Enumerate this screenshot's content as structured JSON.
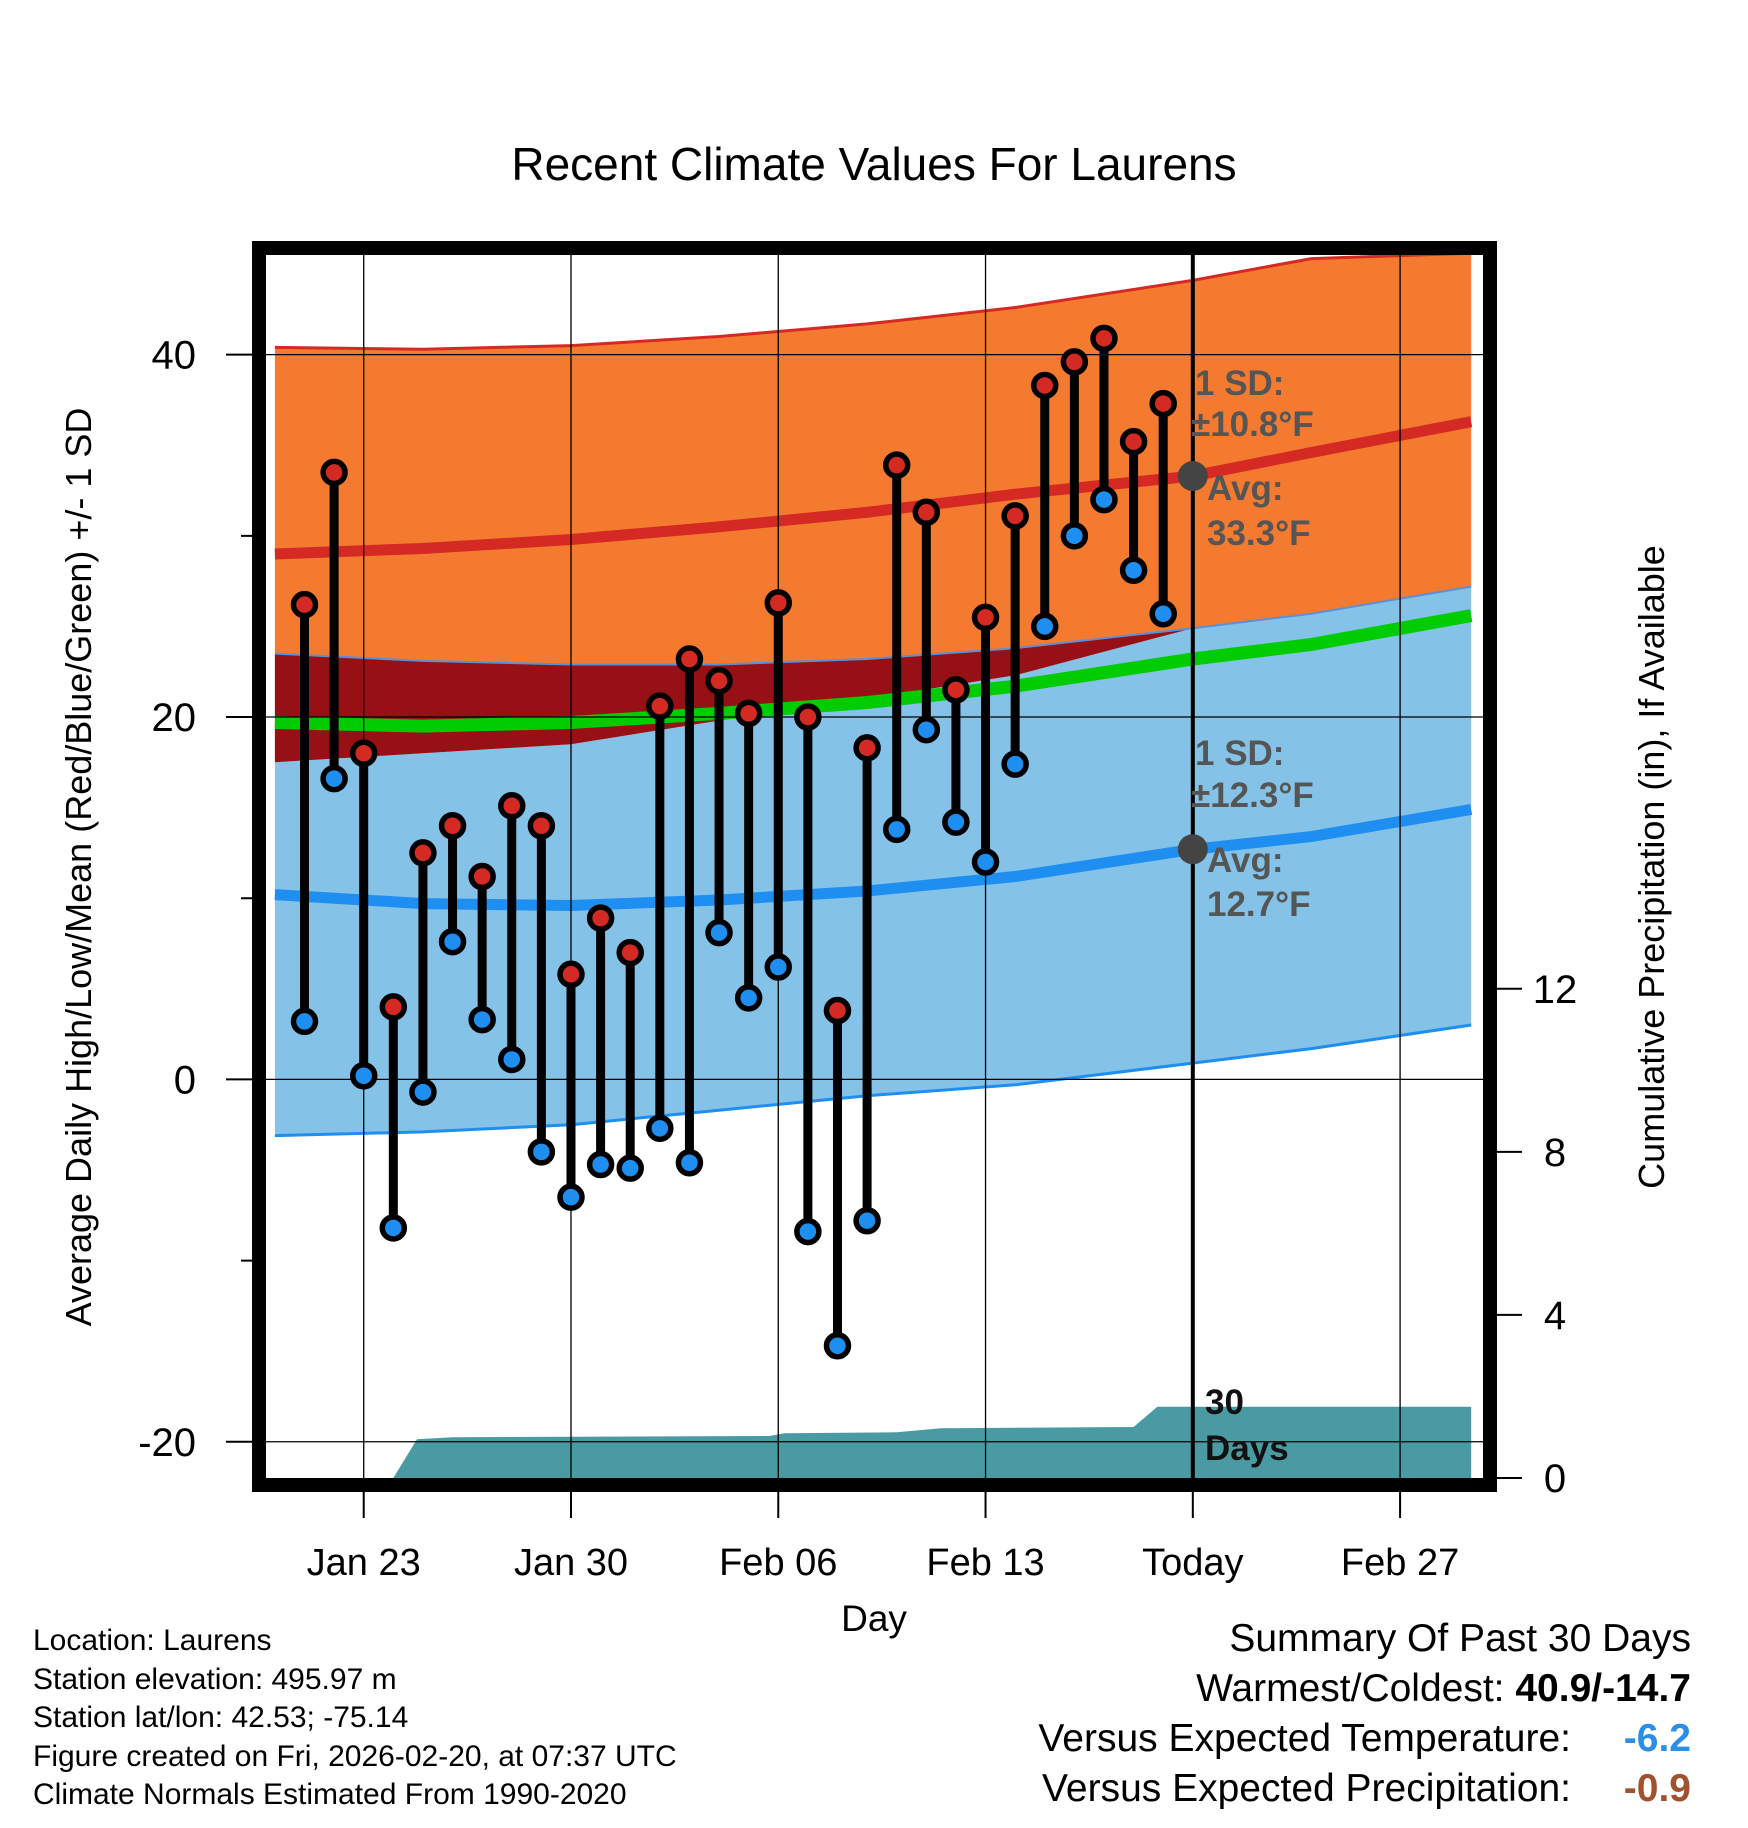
{
  "chart_data": {
    "type": "line",
    "title": "Recent Climate Values For Laurens",
    "xlabel": "Day",
    "ylabel": "Average Daily High/Low/Mean (Red/Blue/Green) +/- 1 SD",
    "y2label": "Cumulative Precipitation (in), If Available",
    "ylim": [
      -22,
      45.5
    ],
    "y2lim": [
      0,
      30
    ],
    "xlim": [
      -0.3,
      40.8
    ],
    "x_ticks": [
      {
        "day": 3,
        "label": "Jan 23"
      },
      {
        "day": 10,
        "label": "Jan 30"
      },
      {
        "day": 17,
        "label": "Feb 06"
      },
      {
        "day": 24,
        "label": "Feb 13"
      },
      {
        "day": 31,
        "label": "Today"
      },
      {
        "day": 38,
        "label": "Feb 27"
      }
    ],
    "y_ticks": [
      -20,
      0,
      20,
      40
    ],
    "y2_ticks": [
      0,
      4,
      8,
      12
    ],
    "today_day": 31,
    "daily_max": [
      26.2,
      33.5,
      18.0,
      4.0,
      12.5,
      14.0,
      11.2,
      15.1,
      14.0,
      5.8,
      8.9,
      7.0,
      20.6,
      23.2,
      22.0,
      20.2,
      26.3,
      20.0,
      3.8,
      18.3,
      33.9,
      31.3,
      21.5,
      25.5,
      31.1,
      38.3,
      39.6,
      40.9,
      35.2,
      37.3
    ],
    "daily_min": [
      3.2,
      16.6,
      0.2,
      -8.2,
      -0.7,
      7.6,
      3.3,
      1.1,
      -4.0,
      -6.5,
      -4.7,
      -4.9,
      -2.7,
      -4.6,
      8.1,
      4.5,
      6.2,
      -8.4,
      -14.7,
      -7.8,
      13.8,
      19.3,
      14.2,
      12.0,
      17.4,
      25.0,
      30.0,
      32.0,
      28.1,
      25.7
    ],
    "normal_high": [
      {
        "day": 0,
        "value": 29.0
      },
      {
        "day": 5,
        "value": 29.3
      },
      {
        "day": 10,
        "value": 29.8
      },
      {
        "day": 15,
        "value": 30.5
      },
      {
        "day": 20,
        "value": 31.3
      },
      {
        "day": 25,
        "value": 32.3
      },
      {
        "day": 31,
        "value": 33.3
      },
      {
        "day": 35,
        "value": 34.6
      },
      {
        "day": 40.4,
        "value": 36.3
      }
    ],
    "normal_high_upper": [
      {
        "day": 0,
        "value": 40.4
      },
      {
        "day": 5,
        "value": 40.3
      },
      {
        "day": 10,
        "value": 40.5
      },
      {
        "day": 15,
        "value": 41.0
      },
      {
        "day": 20,
        "value": 41.7
      },
      {
        "day": 25,
        "value": 42.6
      },
      {
        "day": 31,
        "value": 44.1
      },
      {
        "day": 35,
        "value": 45.3
      },
      {
        "day": 40.4,
        "value": 45.6
      }
    ],
    "normal_high_lower": [
      {
        "day": 0,
        "value": 23.5
      },
      {
        "day": 5,
        "value": 23.1
      },
      {
        "day": 10,
        "value": 22.9
      },
      {
        "day": 15,
        "value": 22.9
      },
      {
        "day": 20,
        "value": 23.2
      },
      {
        "day": 25,
        "value": 23.8
      },
      {
        "day": 31,
        "value": 24.9
      },
      {
        "day": 35,
        "value": 25.7
      },
      {
        "day": 40.4,
        "value": 27.2
      }
    ],
    "normal_mean": [
      {
        "day": 0,
        "value": 19.7
      },
      {
        "day": 5,
        "value": 19.5
      },
      {
        "day": 10,
        "value": 19.7
      },
      {
        "day": 15,
        "value": 20.2
      },
      {
        "day": 20,
        "value": 20.8
      },
      {
        "day": 25,
        "value": 21.7
      },
      {
        "day": 31,
        "value": 23.2
      },
      {
        "day": 35,
        "value": 24.0
      },
      {
        "day": 40.4,
        "value": 25.6
      }
    ],
    "normal_low": [
      {
        "day": 0,
        "value": 10.2
      },
      {
        "day": 5,
        "value": 9.7
      },
      {
        "day": 10,
        "value": 9.6
      },
      {
        "day": 15,
        "value": 9.9
      },
      {
        "day": 20,
        "value": 10.4
      },
      {
        "day": 25,
        "value": 11.2
      },
      {
        "day": 31,
        "value": 12.7
      },
      {
        "day": 35,
        "value": 13.4
      },
      {
        "day": 40.4,
        "value": 14.9
      }
    ],
    "normal_low_upper": [
      {
        "day": 0,
        "value": 17.5
      },
      {
        "day": 5,
        "value": 18.0
      },
      {
        "day": 10,
        "value": 18.5
      },
      {
        "day": 15,
        "value": 19.8
      },
      {
        "day": 20,
        "value": 21.0
      },
      {
        "day": 25,
        "value": 22.3
      },
      {
        "day": 31,
        "value": 24.9
      },
      {
        "day": 35,
        "value": 25.7
      },
      {
        "day": 40.4,
        "value": 27.2
      }
    ],
    "normal_low_lower": [
      {
        "day": 0,
        "value": -3.1
      },
      {
        "day": 5,
        "value": -2.9
      },
      {
        "day": 10,
        "value": -2.5
      },
      {
        "day": 15,
        "value": -1.7
      },
      {
        "day": 20,
        "value": -0.9
      },
      {
        "day": 25,
        "value": -0.3
      },
      {
        "day": 31,
        "value": 0.9
      },
      {
        "day": 35,
        "value": 1.7
      },
      {
        "day": 40.4,
        "value": 3.0
      }
    ],
    "cumulative_precip": [
      {
        "day": 0,
        "value": 0.0
      },
      {
        "day": 4,
        "value": 0.0
      },
      {
        "day": 4.8,
        "value": 0.95
      },
      {
        "day": 6,
        "value": 1.0
      },
      {
        "day": 16.7,
        "value": 1.03
      },
      {
        "day": 17.2,
        "value": 1.1
      },
      {
        "day": 21,
        "value": 1.12
      },
      {
        "day": 22.5,
        "value": 1.22
      },
      {
        "day": 29,
        "value": 1.25
      },
      {
        "day": 29.8,
        "value": 1.75
      },
      {
        "day": 40.4,
        "value": 1.75
      }
    ],
    "annotations": {
      "high_sd": "1 SD:",
      "high_sd_value": "±10.8°F",
      "high_avg": "Avg:",
      "high_avg_value": "33.3°F",
      "low_sd": "1 SD:",
      "low_sd_value": "±12.3°F",
      "low_avg": "Avg:",
      "low_avg_value": "12.7°F",
      "precip_days": "30",
      "precip_days_unit": "Days"
    },
    "colors": {
      "high_band": "#f47a30",
      "high_line": "#d42a23",
      "mean_band": "#961015",
      "mean_line": "#00cc00",
      "low_band": "#85c2e8",
      "low_line": "#1e8ff0",
      "precip": "#4a9aa3",
      "max_dot": "#d42a23",
      "min_dot": "#1e8ff0",
      "today_dot": "#444444",
      "annotation_text": "#555555"
    }
  },
  "meta": {
    "location": "Location: Laurens",
    "elevation": "Station elevation: 495.97 m",
    "latlon": "Station lat/lon: 42.53; -75.14",
    "created": "Figure created on Fri, 2026-02-20, at 07:37 UTC",
    "normals": "Climate Normals Estimated From 1990-2020"
  },
  "summary": {
    "heading": "Summary Of Past 30 Days",
    "warm_cold_label": "Warmest/Coldest: ",
    "warm_cold_value": "40.9/-14.7",
    "temp_label": "Versus Expected Temperature:",
    "temp_value": "-6.2",
    "precip_label": "Versus Expected Precipitation:",
    "precip_value": "-0.9"
  }
}
